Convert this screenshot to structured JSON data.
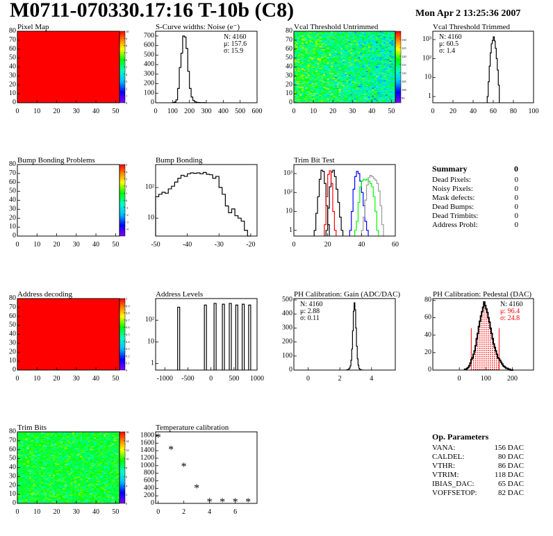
{
  "header": {
    "title": "M0711-070330.17:16 T-10b (C8)",
    "date": "Mon Apr  2 13:25:36 2007"
  },
  "colors": {
    "red_fill": "#ff0000",
    "black": "#000000",
    "blue": "#0000ff",
    "green": "#00ff00",
    "gray": "#999999"
  },
  "chart_data": [
    {
      "id": "pixel_map",
      "type": "heatmap",
      "title": "Pixel Map",
      "xlim": [
        0,
        52
      ],
      "ylim": [
        0,
        80
      ],
      "xticks": [
        0,
        10,
        20,
        30,
        40,
        50
      ],
      "yticks": [
        0,
        10,
        20,
        30,
        40,
        50,
        60,
        70,
        80
      ],
      "zlim": [
        0,
        10
      ],
      "zticks": [
        0,
        1,
        2,
        3,
        4,
        5,
        6,
        7,
        8,
        9,
        10
      ],
      "fill": "uniform",
      "value": 10
    },
    {
      "id": "noise",
      "type": "bar",
      "title": "S-Curve widths: Noise (e⁻)",
      "xlim": [
        0,
        600
      ],
      "ylim": [
        0,
        750
      ],
      "xticks": [
        0,
        100,
        200,
        300,
        400,
        500,
        600
      ],
      "yticks": [
        0,
        100,
        200,
        300,
        400,
        500,
        600,
        700
      ],
      "x_start": 100,
      "bin_width": 10,
      "counts": [
        3,
        8,
        30,
        150,
        370,
        520,
        700,
        690,
        570,
        330,
        150,
        60,
        25,
        10,
        5,
        3,
        2,
        1,
        2,
        0
      ],
      "stats": [
        "N: 4160",
        "μ: 157.6",
        "σ: 15.9"
      ]
    },
    {
      "id": "vcal_untrimmed",
      "type": "heatmap",
      "title": "Vcal Threshold Untrimmed",
      "xlim": [
        0,
        52
      ],
      "ylim": [
        0,
        80
      ],
      "xticks": [
        0,
        10,
        20,
        30,
        40,
        50
      ],
      "yticks": [
        0,
        10,
        20,
        30,
        40,
        50,
        60,
        70,
        80
      ],
      "zlim": [
        92,
        135
      ],
      "zticks": [
        95,
        100,
        105,
        110,
        115,
        120,
        125,
        130
      ],
      "fill": "random",
      "zrange_shown": [
        100,
        125
      ]
    },
    {
      "id": "vcal_trimmed",
      "type": "bar",
      "title": "Vcal Threshold Trimmed",
      "log_y": true,
      "xlim": [
        0,
        100
      ],
      "ylim": [
        0.47,
        2750
      ],
      "xticks": [
        0,
        20,
        40,
        60,
        80,
        100
      ],
      "yticks": [
        1,
        10,
        100,
        1000
      ],
      "ytick_labels": [
        "1",
        "10",
        "10²",
        "10³"
      ],
      "x_start": 54,
      "bin_width": 1,
      "counts": [
        1,
        6,
        40,
        200,
        600,
        900,
        1400,
        850,
        350,
        100,
        25,
        4
      ],
      "stats": [
        "N: 4160",
        "μ: 60.5",
        "σ:  1.4"
      ]
    },
    {
      "id": "bump_problems",
      "type": "heatmap",
      "title": "Bump Bonding Problems",
      "xlim": [
        0,
        52
      ],
      "ylim": [
        0,
        80
      ],
      "xticks": [
        0,
        10,
        20,
        30,
        40,
        50
      ],
      "yticks": [
        0,
        10,
        20,
        30,
        40,
        50,
        60,
        70,
        80
      ],
      "zlim": [
        -5,
        5
      ],
      "zticks": [
        -4,
        -3,
        -2,
        -1,
        0,
        1,
        2,
        3,
        4,
        5
      ],
      "fill": "empty"
    },
    {
      "id": "bump_bonding",
      "type": "bar",
      "title": "Bump Bonding",
      "log_y": true,
      "xlim": [
        -50,
        -18
      ],
      "ylim": [
        2.6,
        560
      ],
      "xticks": [
        -50,
        -40,
        -30,
        -20
      ],
      "yticks": [
        10,
        100
      ],
      "ytick_labels": [
        "10",
        "10²"
      ],
      "x_start": -50,
      "bin_width": 1,
      "counts": [
        50,
        60,
        70,
        65,
        90,
        110,
        150,
        200,
        250,
        230,
        280,
        300,
        290,
        300,
        280,
        310,
        270,
        260,
        200,
        230,
        100,
        60,
        25,
        15,
        20,
        12,
        10,
        8,
        4,
        2
      ]
    },
    {
      "id": "trim_bit_test",
      "type": "bar",
      "title": "Trim Bit Test",
      "log_y": true,
      "xlim": [
        0,
        60
      ],
      "ylim": [
        0.5,
        3000
      ],
      "xticks": [
        0,
        20,
        40,
        60
      ],
      "yticks": [
        1,
        10,
        100,
        1000
      ],
      "ytick_labels": [
        "1",
        "10",
        "10²",
        "10³"
      ],
      "series": [
        {
          "color": "#000000",
          "x_start": 12,
          "bin_width": 1,
          "counts": [
            1,
            8,
            60,
            500,
            1500,
            1300,
            300,
            20,
            2
          ]
        },
        {
          "color": "#000000",
          "x_start": 19,
          "bin_width": 1,
          "counts": [
            1,
            15,
            200,
            1200,
            1500,
            700,
            150,
            30,
            5,
            1
          ]
        },
        {
          "color": "#ff0000",
          "x_start": 18,
          "bin_width": 1,
          "counts": [
            2,
            60,
            900,
            1400,
            300,
            10,
            1
          ]
        },
        {
          "color": "#0000ff",
          "x_start": 33,
          "bin_width": 1,
          "counts": [
            1,
            10,
            150,
            700,
            1300,
            1000,
            400,
            100,
            20,
            3,
            1
          ]
        },
        {
          "color": "#00ff00",
          "x_start": 36,
          "bin_width": 1,
          "counts": [
            1,
            3,
            30,
            200,
            400,
            500,
            450,
            500,
            400,
            300,
            200,
            60,
            10,
            1
          ]
        },
        {
          "color": "#999999",
          "x_start": 40,
          "bin_width": 1,
          "counts": [
            1,
            5,
            40,
            250,
            600,
            800,
            700,
            550,
            450,
            300,
            120,
            20,
            2
          ]
        }
      ]
    },
    {
      "id": "summary",
      "type": "table",
      "title": "Summary",
      "total": "0",
      "rows": [
        [
          "Dead Pixels:",
          "0"
        ],
        [
          "Noisy Pixels:",
          "0"
        ],
        [
          "Mask defects:",
          "0"
        ],
        [
          "Dead Bumps:",
          "0"
        ],
        [
          "Dead Trimbits:",
          "0"
        ],
        [
          "Address Probl:",
          "0"
        ]
      ]
    },
    {
      "id": "address_decoding",
      "type": "heatmap",
      "title": "Address decoding",
      "xlim": [
        0,
        52
      ],
      "ylim": [
        0,
        80
      ],
      "xticks": [
        0,
        10,
        20,
        30,
        40,
        50
      ],
      "yticks": [
        0,
        10,
        20,
        30,
        40,
        50,
        60,
        70,
        80
      ],
      "zlim": [
        0,
        1
      ],
      "zticks": [
        0,
        0.1,
        0.2,
        0.3,
        0.4,
        0.5,
        0.6,
        0.7,
        0.8,
        0.9,
        1
      ],
      "fill": "uniform",
      "value": 1
    },
    {
      "id": "address_levels",
      "type": "bar",
      "title": "Address Levels",
      "log_y": true,
      "xlim": [
        -1200,
        1000
      ],
      "ylim": [
        0.5,
        1000
      ],
      "xticks": [
        -1000,
        -500,
        0,
        500,
        1000
      ],
      "yticks": [
        1,
        10,
        100
      ],
      "ytick_labels": [
        "1",
        "10",
        "10²"
      ],
      "spikes": [
        [
          -700,
          400
        ],
        [
          -120,
          500
        ],
        [
          90,
          600
        ],
        [
          270,
          550
        ],
        [
          420,
          600
        ],
        [
          560,
          500
        ],
        [
          700,
          550
        ],
        [
          840,
          500
        ]
      ]
    },
    {
      "id": "ph_gain",
      "type": "bar",
      "title": "PH Calibration: Gain (ADC/DAC)",
      "xlim": [
        -0.9,
        5.5
      ],
      "ylim": [
        0,
        510
      ],
      "xticks": [
        0,
        2,
        4
      ],
      "yticks": [
        0,
        100,
        200,
        300,
        400,
        500
      ],
      "x_start": 2.4,
      "bin_width": 0.05,
      "counts": [
        1,
        2,
        4,
        8,
        15,
        30,
        70,
        150,
        280,
        420,
        480,
        430,
        300,
        170,
        80,
        35,
        12,
        5,
        2,
        1
      ],
      "stats": [
        "N: 4160",
        "μ: 2.88",
        "σ: 0.11"
      ]
    },
    {
      "id": "ph_pedestal",
      "type": "bar",
      "title": "PH Calibration: Pedestal (DAC)",
      "xlim": [
        -100,
        280
      ],
      "ylim": [
        0,
        82
      ],
      "xticks": [
        0,
        100,
        200
      ],
      "yticks": [
        0,
        20,
        40,
        60,
        80
      ],
      "x_start": 20,
      "bin_width": 4,
      "counts": [
        1,
        1,
        2,
        3,
        5,
        8,
        12,
        14,
        18,
        22,
        28,
        36,
        42,
        50,
        56,
        62,
        67,
        72,
        78,
        74,
        70,
        66,
        60,
        55,
        48,
        42,
        36,
        30,
        26,
        22,
        18,
        14,
        13,
        11,
        9,
        7,
        5,
        4,
        3,
        2,
        2,
        1,
        1,
        0,
        0,
        0
      ],
      "fill_range": [
        45,
        150
      ],
      "stats": [
        "N: 4160",
        "μ: 96.4",
        "σ: 24.8"
      ]
    },
    {
      "id": "trim_bits",
      "type": "heatmap",
      "title": "Trim Bits",
      "xlim": [
        0,
        52
      ],
      "ylim": [
        0,
        80
      ],
      "xticks": [
        0,
        10,
        20,
        30,
        40,
        50
      ],
      "yticks": [
        0,
        10,
        20,
        30,
        40,
        50,
        60,
        70,
        80
      ],
      "zlim": [
        0,
        16
      ],
      "zticks": [
        0,
        2,
        4,
        6,
        8,
        10,
        12,
        14,
        16
      ],
      "fill": "random",
      "zrange_shown": [
        6,
        12
      ]
    },
    {
      "id": "temperature",
      "type": "scatter",
      "title": "Temperature calibration",
      "xlim": [
        -0.2,
        7.7
      ],
      "ylim": [
        0,
        1900
      ],
      "xticks": [
        0,
        2,
        4,
        6
      ],
      "yticks": [
        0,
        200,
        400,
        600,
        800,
        1000,
        1200,
        1400,
        1600,
        1800
      ],
      "x": [
        0,
        1,
        2,
        3,
        4,
        5,
        6,
        7
      ],
      "y": [
        1750,
        1430,
        980,
        410,
        40,
        40,
        40,
        40
      ]
    }
  ],
  "op_parameters": {
    "title": "Op. Parameters",
    "rows": [
      [
        "VANA:",
        "156 DAC"
      ],
      [
        "CALDEL:",
        "80 DAC"
      ],
      [
        "VTHR:",
        "86 DAC"
      ],
      [
        "VTRIM:",
        "118 DAC"
      ],
      [
        "IBIAS_DAC:",
        "65 DAC"
      ],
      [
        "VOFFSETOP:",
        "82 DAC"
      ]
    ]
  }
}
